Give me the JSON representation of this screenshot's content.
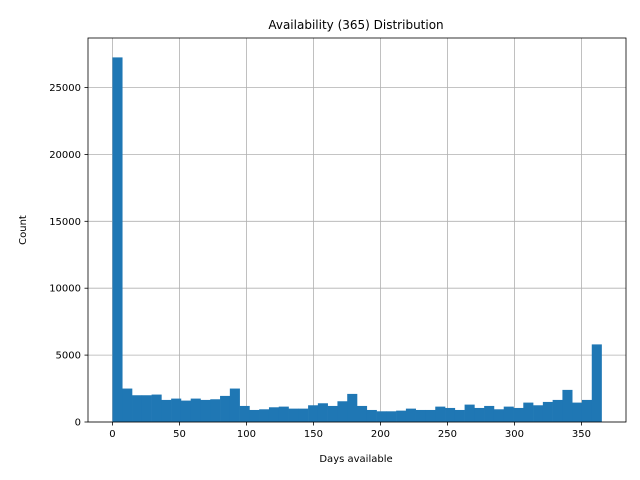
{
  "chart_data": {
    "type": "bar",
    "title": "Availability (365) Distribution",
    "xlabel": "Days available",
    "ylabel": "Count",
    "xlim": [
      -18.25,
      383.25
    ],
    "ylim": [
      0,
      28700
    ],
    "xticks": [
      0,
      50,
      100,
      150,
      200,
      250,
      300,
      350
    ],
    "yticks": [
      0,
      5000,
      10000,
      15000,
      20000,
      25000
    ],
    "grid": true,
    "bar_color": "#1f77b4",
    "bin_width": 7.3,
    "bin_start": 0,
    "values": [
      27250,
      2500,
      2000,
      2000,
      2050,
      1650,
      1750,
      1600,
      1750,
      1650,
      1700,
      1950,
      2500,
      1200,
      900,
      950,
      1100,
      1150,
      1000,
      1000,
      1250,
      1400,
      1200,
      1550,
      2100,
      1200,
      900,
      800,
      800,
      850,
      1000,
      900,
      900,
      1150,
      1050,
      900,
      1300,
      1050,
      1200,
      950,
      1150,
      1050,
      1450,
      1250,
      1500,
      1650,
      2400,
      1450,
      1650,
      5800
    ]
  }
}
